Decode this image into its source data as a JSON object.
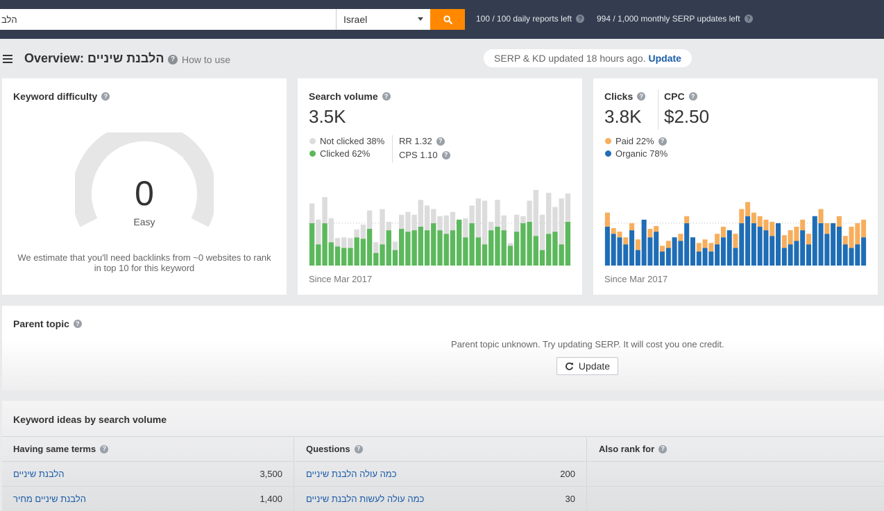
{
  "topbar": {
    "search_value": "הלב",
    "country": "Israel",
    "reports_left": "100 / 100 daily reports left",
    "serp_left": "994 / 1,000 monthly SERP updates left"
  },
  "header": {
    "title": "Overview: הלבנת שיניים",
    "how_to_use": "How to use",
    "serp_status": "SERP & KD updated 18 hours ago.",
    "serp_update_link": "Update"
  },
  "kd": {
    "title": "Keyword difficulty",
    "value": "0",
    "label": "Easy",
    "description": "We estimate that you'll need backlinks from ~0 websites to rank in top 10 for this keyword"
  },
  "volume": {
    "title": "Search volume",
    "value": "3.5K",
    "not_clicked": "Not clicked 38%",
    "clicked": "Clicked 62%",
    "rr": "RR 1.32",
    "cps": "CPS 1.10",
    "since": "Since Mar 2017"
  },
  "clicks": {
    "title": "Clicks",
    "value": "3.8K",
    "cpc_title": "CPC",
    "cpc_value": "$2.50",
    "paid": "Paid 22%",
    "organic": "Organic 78%",
    "since": "Since Mar 2017"
  },
  "parent_topic": {
    "title": "Parent topic",
    "message": "Parent topic unknown. Try updating SERP. It will cost you one credit.",
    "button": "Update"
  },
  "ideas": {
    "title": "Keyword ideas by search volume",
    "columns": [
      {
        "header": "Having same terms",
        "rows": [
          {
            "keyword": "הלבנת שיניים",
            "volume": "3,500"
          },
          {
            "keyword": "הלבנת שיניים מחיר",
            "volume": "1,400"
          }
        ]
      },
      {
        "header": "Questions",
        "rows": [
          {
            "keyword": "כמה עולה הלבנת שיניים",
            "volume": "200"
          },
          {
            "keyword": "כמה עולה לעשות הלבנת שיניים",
            "volume": "30"
          }
        ]
      },
      {
        "header": "Also rank for",
        "rows": []
      }
    ]
  },
  "colors": {
    "topbar": "#333d4f",
    "accent_orange": "#ff8800",
    "link_blue": "#1a5ca8",
    "clicked_green": "#5cb85c",
    "not_clicked_gray": "#dcdcdc",
    "paid_orange": "#f7ae5c",
    "organic_blue": "#1f6db5"
  },
  "chart_data": [
    {
      "type": "bar",
      "stacked": true,
      "name": "search-volume-history",
      "ylim": [
        0,
        110
      ],
      "series": [
        {
          "name": "Clicked",
          "color": "#5cb85c",
          "values": [
            60,
            30,
            60,
            33,
            27,
            25,
            25,
            40,
            38,
            52,
            18,
            30,
            50,
            22,
            52,
            48,
            50,
            55,
            50,
            60,
            50,
            45,
            50,
            65,
            40,
            60,
            40,
            30,
            50,
            55,
            50,
            28,
            48,
            60,
            62,
            42,
            22,
            45,
            48,
            30,
            62
          ]
        },
        {
          "name": "Not clicked",
          "color": "#dcdcdc",
          "values": [
            28,
            35,
            37,
            34,
            12,
            15,
            14,
            11,
            20,
            26,
            15,
            50,
            12,
            12,
            20,
            28,
            22,
            38,
            35,
            20,
            20,
            26,
            26,
            0,
            27,
            25,
            55,
            62,
            12,
            38,
            21,
            4,
            24,
            10,
            30,
            65,
            50,
            58,
            35,
            65,
            40
          ]
        }
      ]
    },
    {
      "type": "bar",
      "stacked": true,
      "name": "clicks-history",
      "ylim": [
        0,
        110
      ],
      "series": [
        {
          "name": "Organic",
          "color": "#1f6db5",
          "values": [
            55,
            45,
            40,
            30,
            50,
            22,
            65,
            40,
            48,
            20,
            25,
            40,
            35,
            60,
            40,
            20,
            25,
            20,
            30,
            40,
            50,
            25,
            60,
            70,
            60,
            55,
            50,
            42,
            60,
            25,
            30,
            35,
            50,
            30,
            70,
            60,
            45,
            60,
            55,
            30,
            25,
            30,
            40
          ]
        },
        {
          "name": "Paid",
          "color": "#f7ae5c",
          "values": [
            20,
            8,
            8,
            10,
            10,
            15,
            0,
            12,
            8,
            8,
            10,
            0,
            10,
            10,
            0,
            12,
            12,
            12,
            15,
            15,
            0,
            20,
            20,
            20,
            15,
            15,
            15,
            20,
            0,
            18,
            20,
            20,
            15,
            15,
            0,
            20,
            15,
            0,
            15,
            12,
            30,
            30,
            25
          ]
        }
      ]
    }
  ]
}
